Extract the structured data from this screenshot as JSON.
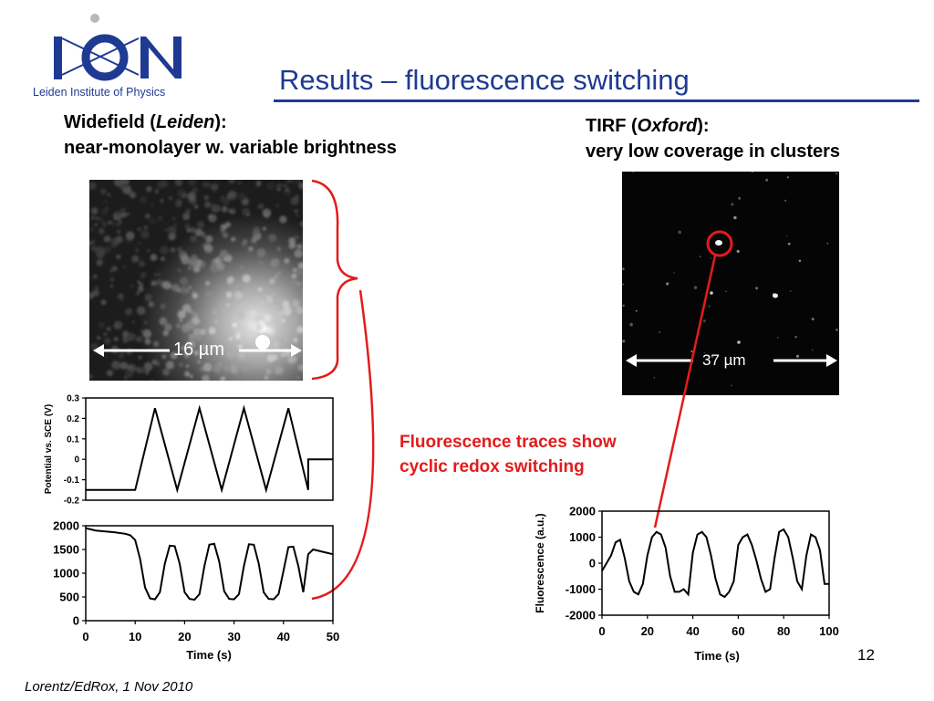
{
  "logo": {
    "name": "LION",
    "subtitle": "Leiden Institute of Physics"
  },
  "title": "Results – fluorescence switching",
  "widefield": {
    "heading_prefix": "Widefield (",
    "heading_italic": "Leiden",
    "heading_suffix": "):",
    "heading_line2": "near-monolayer w. variable brightness",
    "scale_label": "16 µm"
  },
  "tirf": {
    "heading_prefix": "TIRF (",
    "heading_italic": "Oxford",
    "heading_suffix": "):",
    "heading_line2": "very low coverage in clusters",
    "scale_label": "37 µm"
  },
  "callout": {
    "line1": "Fluorescence traces show",
    "line2": "cyclic redox switching"
  },
  "slide_number": "12",
  "footer": "Lorentz/EdRox, 1 Nov 2010",
  "colors": {
    "title": "#1f3a93",
    "callout": "#e31b1b"
  },
  "chart_data": [
    {
      "type": "line",
      "title": "",
      "xlabel": "",
      "ylabel": "Potential vs. SCE (V)",
      "xlim": [
        0,
        50
      ],
      "ylim": [
        -0.2,
        0.3
      ],
      "yticks": [
        "0.3",
        "0.2",
        "0.1",
        "0",
        "-0.1",
        "-0.2"
      ],
      "series": [
        {
          "x": [
            0,
            10,
            14,
            18.5,
            23,
            27.5,
            32,
            36.5,
            41,
            45,
            45,
            50
          ],
          "y": [
            -0.15,
            -0.15,
            0.25,
            -0.15,
            0.25,
            -0.15,
            0.25,
            -0.15,
            0.25,
            -0.15,
            0,
            0
          ]
        }
      ]
    },
    {
      "type": "line",
      "title": "",
      "xlabel": "Time (s)",
      "ylabel": "",
      "xlim": [
        0,
        50
      ],
      "ylim": [
        0,
        2000
      ],
      "xticks": [
        "0",
        "10",
        "20",
        "30",
        "40",
        "50"
      ],
      "yticks": [
        "2000",
        "1500",
        "1000",
        "500",
        "0"
      ],
      "series": [
        {
          "x": [
            0,
            2,
            4,
            6,
            8,
            9,
            10,
            11,
            12,
            13,
            14,
            15,
            16,
            17,
            18,
            19,
            20,
            21,
            22,
            23,
            24,
            25,
            26,
            27,
            28,
            29,
            30,
            31,
            32,
            33,
            34,
            35,
            36,
            37,
            38,
            39,
            40,
            41,
            42,
            43,
            44,
            45,
            46,
            48,
            50
          ],
          "y": [
            1950,
            1900,
            1880,
            1860,
            1830,
            1800,
            1700,
            1300,
            700,
            470,
            450,
            600,
            1200,
            1580,
            1570,
            1200,
            600,
            460,
            440,
            560,
            1150,
            1600,
            1620,
            1250,
            620,
            460,
            450,
            560,
            1150,
            1610,
            1600,
            1200,
            600,
            460,
            450,
            560,
            1050,
            1550,
            1560,
            1150,
            600,
            1400,
            1500,
            1450,
            1400
          ]
        }
      ]
    },
    {
      "type": "line",
      "title": "",
      "xlabel": "Time (s)",
      "ylabel": "Fluorescence (a.u.)",
      "xlim": [
        0,
        100
      ],
      "ylim": [
        -2000,
        2000
      ],
      "xticks": [
        "0",
        "20",
        "40",
        "60",
        "80",
        "100"
      ],
      "yticks": [
        "2000",
        "1000",
        "0",
        "-1000",
        "-2000"
      ],
      "series": [
        {
          "x": [
            0,
            2,
            4,
            6,
            8,
            10,
            12,
            14,
            16,
            18,
            20,
            22,
            24,
            26,
            28,
            30,
            32,
            34,
            36,
            38,
            40,
            42,
            44,
            46,
            48,
            50,
            52,
            54,
            56,
            58,
            60,
            62,
            64,
            66,
            68,
            70,
            72,
            74,
            76,
            78,
            80,
            82,
            84,
            86,
            88,
            90,
            92,
            94,
            96,
            98,
            100
          ],
          "y": [
            -300,
            0,
            300,
            800,
            900,
            200,
            -700,
            -1100,
            -1200,
            -800,
            300,
            1000,
            1200,
            1100,
            600,
            -500,
            -1100,
            -1100,
            -1000,
            -1200,
            400,
            1100,
            1200,
            1000,
            300,
            -600,
            -1200,
            -1300,
            -1100,
            -700,
            700,
            1000,
            1100,
            700,
            100,
            -600,
            -1100,
            -1000,
            200,
            1200,
            1300,
            1000,
            200,
            -700,
            -1000,
            300,
            1100,
            1000,
            500,
            -800,
            -800
          ]
        }
      ]
    }
  ]
}
